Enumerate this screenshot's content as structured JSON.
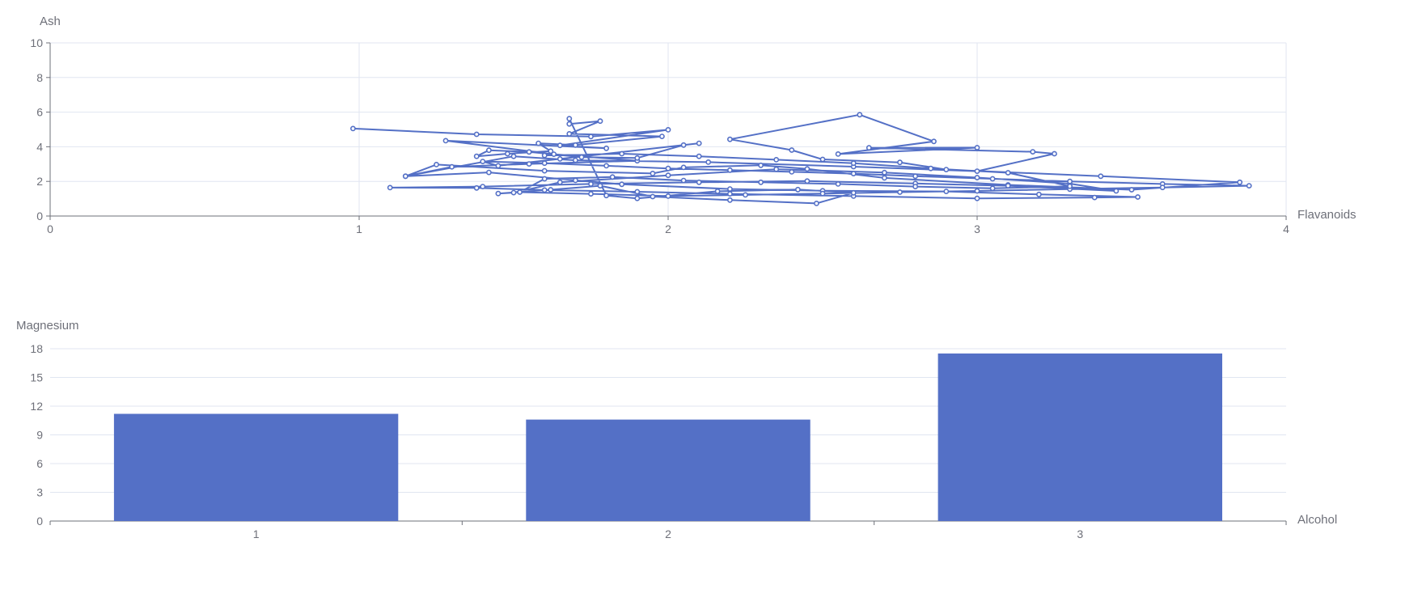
{
  "colors": {
    "series": "#5470c6",
    "axis": "#6e7079",
    "grid": "#e0e6f1",
    "text": "#6e7079"
  },
  "chart_data": [
    {
      "type": "line",
      "xlabel": "Flavanoids",
      "ylabel": "Ash",
      "xlim": [
        0,
        4
      ],
      "ylim": [
        0,
        10
      ],
      "x_ticks": [
        "0",
        "1",
        "2",
        "3",
        "4"
      ],
      "y_ticks": [
        "0",
        "2",
        "4",
        "6",
        "8",
        "10"
      ],
      "grid": true,
      "markers": true,
      "series": [
        {
          "points": [
            [
              0.98,
              5.05
            ],
            [
              1.38,
              4.72
            ],
            [
              1.75,
              4.59
            ],
            [
              2.0,
              4.98
            ],
            [
              1.65,
              4.08
            ],
            [
              1.8,
              3.91
            ],
            [
              1.28,
              4.35
            ],
            [
              1.63,
              3.57
            ],
            [
              1.9,
              3.19
            ],
            [
              1.55,
              3.01
            ],
            [
              1.3,
              2.84
            ],
            [
              1.15,
              2.3
            ],
            [
              1.5,
              3.45
            ],
            [
              1.7,
              3.22
            ],
            [
              2.13,
              3.11
            ],
            [
              2.6,
              2.85
            ],
            [
              3.0,
              2.59
            ],
            [
              3.25,
              3.6
            ],
            [
              3.18,
              3.71
            ],
            [
              2.65,
              3.94
            ],
            [
              3.0,
              3.95
            ],
            [
              2.55,
              3.58
            ],
            [
              2.86,
              4.31
            ],
            [
              2.62,
              5.85
            ],
            [
              2.2,
              4.43
            ],
            [
              2.4,
              3.81
            ],
            [
              2.5,
              3.27
            ],
            [
              2.75,
              3.1
            ],
            [
              2.9,
              2.68
            ],
            [
              3.4,
              2.3
            ],
            [
              3.85,
              1.95
            ],
            [
              3.5,
              1.52
            ],
            [
              3.1,
              1.8
            ],
            [
              2.7,
              2.2
            ],
            [
              2.45,
              2.72
            ],
            [
              2.3,
              2.93
            ],
            [
              2.05,
              2.81
            ],
            [
              1.95,
              2.46
            ],
            [
              1.6,
              2.61
            ],
            [
              1.25,
              2.97
            ],
            [
              1.15,
              2.3
            ],
            [
              1.42,
              2.52
            ],
            [
              1.7,
              2.06
            ],
            [
              1.85,
              1.83
            ],
            [
              2.2,
              1.56
            ],
            [
              2.5,
              1.46
            ],
            [
              2.9,
              1.42
            ],
            [
              3.2,
              1.25
            ],
            [
              3.52,
              1.1
            ],
            [
              3.38,
              1.07
            ],
            [
              3.0,
              1.02
            ],
            [
              2.6,
              1.15
            ],
            [
              2.2,
              1.28
            ],
            [
              1.9,
              1.4
            ],
            [
              1.6,
              1.5
            ],
            [
              1.38,
              1.62
            ],
            [
              1.1,
              1.64
            ],
            [
              1.4,
              1.7
            ],
            [
              1.75,
              1.85
            ],
            [
              2.1,
              1.95
            ],
            [
              2.45,
              2.02
            ],
            [
              2.8,
              1.88
            ],
            [
              3.1,
              1.75
            ],
            [
              3.45,
              1.45
            ],
            [
              3.3,
              1.87
            ],
            [
              3.0,
              2.22
            ],
            [
              2.7,
              2.51
            ],
            [
              2.35,
              2.7
            ],
            [
              2.0,
              2.35
            ],
            [
              1.65,
              1.95
            ],
            [
              1.5,
              1.35
            ],
            [
              1.45,
              1.3
            ],
            [
              1.62,
              1.52
            ],
            [
              1.78,
              1.75
            ],
            [
              1.95,
              1.12
            ],
            [
              2.2,
              0.92
            ],
            [
              2.48,
              0.73
            ],
            [
              2.6,
              1.34
            ],
            [
              2.42,
              1.53
            ],
            [
              2.16,
              1.43
            ],
            [
              1.9,
              1.02
            ],
            [
              1.8,
              1.18
            ],
            [
              1.68,
              5.62
            ],
            [
              1.68,
              5.32
            ],
            [
              1.78,
              5.48
            ],
            [
              1.68,
              4.75
            ],
            [
              1.98,
              4.6
            ],
            [
              1.7,
              4.1
            ],
            [
              1.58,
              4.2
            ],
            [
              1.62,
              3.75
            ],
            [
              1.48,
              3.6
            ],
            [
              1.38,
              3.45
            ],
            [
              1.42,
              3.8
            ],
            [
              1.55,
              3.7
            ],
            [
              1.72,
              3.4
            ],
            [
              1.9,
              3.35
            ],
            [
              2.05,
              4.1
            ],
            [
              2.1,
              4.2
            ],
            [
              1.65,
              3.3
            ],
            [
              1.45,
              2.9
            ],
            [
              1.4,
              3.15
            ],
            [
              1.6,
              3.05
            ],
            [
              1.8,
              2.9
            ],
            [
              2.0,
              2.75
            ],
            [
              2.2,
              2.65
            ],
            [
              2.4,
              2.55
            ],
            [
              2.6,
              2.45
            ],
            [
              2.8,
              2.3
            ],
            [
              3.05,
              2.15
            ],
            [
              3.3,
              2.0
            ],
            [
              3.6,
              1.85
            ],
            [
              3.88,
              1.75
            ],
            [
              3.6,
              1.65
            ],
            [
              3.3,
              1.55
            ],
            [
              3.0,
              1.45
            ],
            [
              2.75,
              1.38
            ],
            [
              2.5,
              1.3
            ],
            [
              2.25,
              1.22
            ],
            [
              2.0,
              1.15
            ],
            [
              1.75,
              1.28
            ],
            [
              1.52,
              1.38
            ],
            [
              1.6,
              2.15
            ],
            [
              1.82,
              2.25
            ],
            [
              2.05,
              2.05
            ],
            [
              2.3,
              1.95
            ],
            [
              2.55,
              1.85
            ],
            [
              2.8,
              1.7
            ],
            [
              3.05,
              1.6
            ],
            [
              3.3,
              1.72
            ],
            [
              3.1,
              2.5
            ],
            [
              2.85,
              2.75
            ],
            [
              2.6,
              3.05
            ],
            [
              2.35,
              3.25
            ],
            [
              2.1,
              3.45
            ],
            [
              1.85,
              3.6
            ],
            [
              1.6,
              3.5
            ]
          ]
        }
      ]
    },
    {
      "type": "bar",
      "xlabel": "Alcohol",
      "ylabel": "Magnesium",
      "categories": [
        "1",
        "2",
        "3"
      ],
      "values": [
        11.2,
        10.6,
        17.5
      ],
      "ylim": [
        0,
        18
      ],
      "y_ticks": [
        "0",
        "3",
        "6",
        "9",
        "12",
        "15",
        "18"
      ],
      "grid": true
    }
  ]
}
